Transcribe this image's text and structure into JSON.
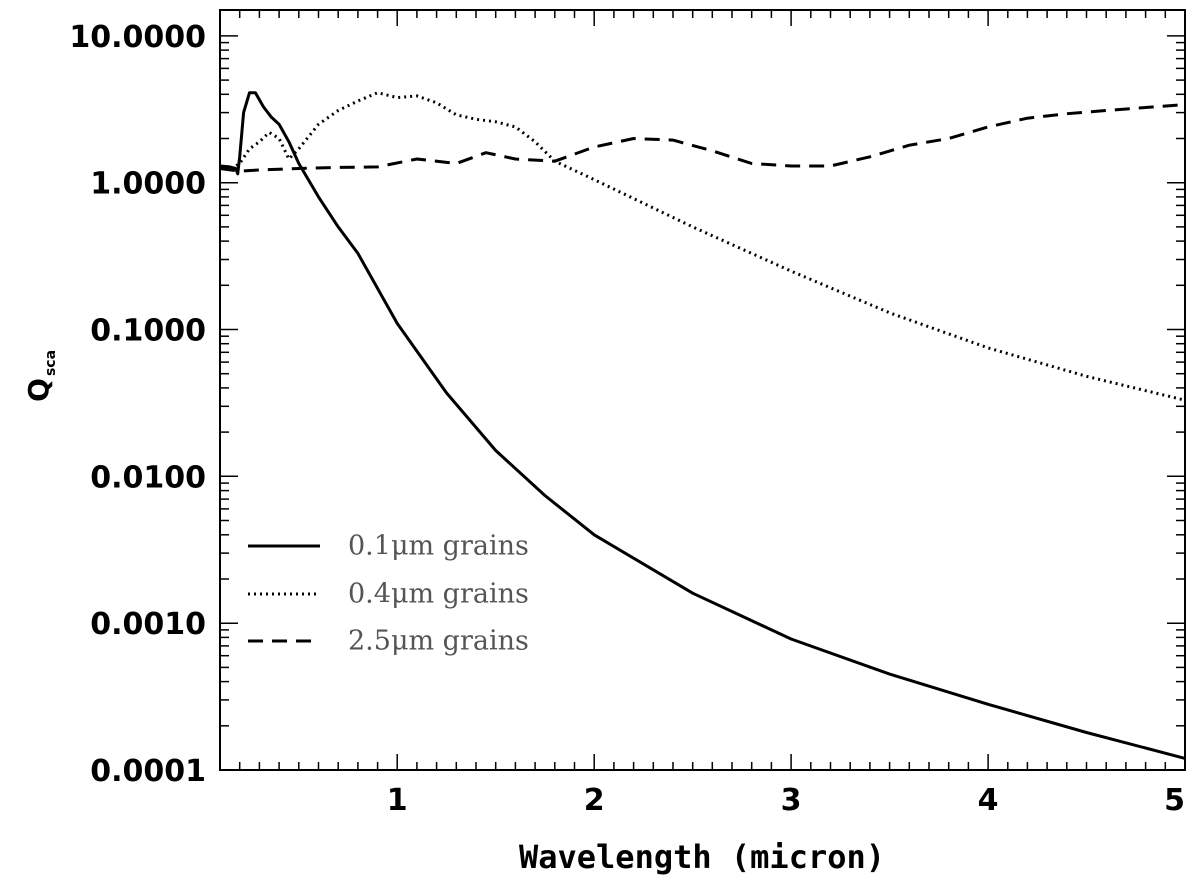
{
  "chart_data": {
    "type": "line",
    "title": "",
    "xlabel": "Wavelength (micron)",
    "ylabel": "Q",
    "ylabel_subscript": "sca",
    "xlim": [
      0.1,
      5.0
    ],
    "ylim": [
      0.0001,
      15.0
    ],
    "yscale": "log",
    "grid": false,
    "legend_position": "bottom-left",
    "x_ticks": [
      {
        "value": 1,
        "label": "1"
      },
      {
        "value": 2,
        "label": "2"
      },
      {
        "value": 3,
        "label": "3"
      },
      {
        "value": 4,
        "label": "4"
      },
      {
        "value": 5,
        "label": "5"
      }
    ],
    "y_ticks": [
      {
        "value": 0.0001,
        "label": "0.0001"
      },
      {
        "value": 0.001,
        "label": "0.0010"
      },
      {
        "value": 0.01,
        "label": "0.0100"
      },
      {
        "value": 0.1,
        "label": "0.1000"
      },
      {
        "value": 1,
        "label": "1.0000"
      },
      {
        "value": 10,
        "label": "10.0000"
      }
    ],
    "series": [
      {
        "name": "0.1μm grains",
        "legend_label": "0.1μm grains",
        "dash": "solid",
        "color": "#000000",
        "x": [
          0.1,
          0.15,
          0.18,
          0.19,
          0.2,
          0.22,
          0.25,
          0.28,
          0.32,
          0.36,
          0.4,
          0.45,
          0.5,
          0.6,
          0.7,
          0.8,
          1.0,
          1.25,
          1.5,
          1.75,
          2.0,
          2.5,
          3.0,
          3.5,
          4.0,
          4.5,
          5.0
        ],
        "y": [
          1.3,
          1.28,
          1.25,
          1.15,
          1.5,
          3.0,
          4.1,
          4.1,
          3.3,
          2.8,
          2.5,
          1.9,
          1.35,
          0.8,
          0.5,
          0.33,
          0.11,
          0.037,
          0.015,
          0.0074,
          0.004,
          0.0016,
          0.00078,
          0.00045,
          0.00028,
          0.00018,
          0.00012
        ]
      },
      {
        "name": "0.4μm grains",
        "legend_label": "0.4μm grains",
        "dash": "dotted",
        "color": "#000000",
        "x": [
          0.1,
          0.15,
          0.2,
          0.25,
          0.3,
          0.35,
          0.4,
          0.45,
          0.5,
          0.6,
          0.7,
          0.8,
          0.9,
          1.0,
          1.1,
          1.2,
          1.3,
          1.4,
          1.5,
          1.6,
          1.7,
          1.8,
          2.0,
          2.5,
          3.0,
          3.5,
          4.0,
          4.5,
          5.0
        ],
        "y": [
          1.28,
          1.22,
          1.35,
          1.7,
          1.9,
          2.2,
          2.0,
          1.45,
          1.7,
          2.5,
          3.1,
          3.6,
          4.1,
          3.8,
          3.9,
          3.5,
          2.9,
          2.7,
          2.6,
          2.4,
          1.9,
          1.4,
          1.05,
          0.5,
          0.25,
          0.13,
          0.075,
          0.048,
          0.033
        ]
      },
      {
        "name": "2.5μm grains",
        "legend_label": "2.5μm grains",
        "dash": "dashed",
        "color": "#000000",
        "x": [
          0.1,
          0.2,
          0.3,
          0.5,
          0.7,
          0.9,
          1.1,
          1.3,
          1.45,
          1.6,
          1.8,
          2.0,
          2.2,
          2.4,
          2.6,
          2.8,
          3.0,
          3.2,
          3.4,
          3.6,
          3.8,
          4.0,
          4.2,
          4.4,
          4.6,
          4.8,
          5.0
        ],
        "y": [
          1.25,
          1.2,
          1.22,
          1.25,
          1.27,
          1.28,
          1.45,
          1.35,
          1.6,
          1.45,
          1.4,
          1.75,
          2.0,
          1.95,
          1.65,
          1.35,
          1.3,
          1.3,
          1.5,
          1.8,
          2.0,
          2.4,
          2.75,
          2.95,
          3.1,
          3.25,
          3.4
        ]
      }
    ]
  }
}
